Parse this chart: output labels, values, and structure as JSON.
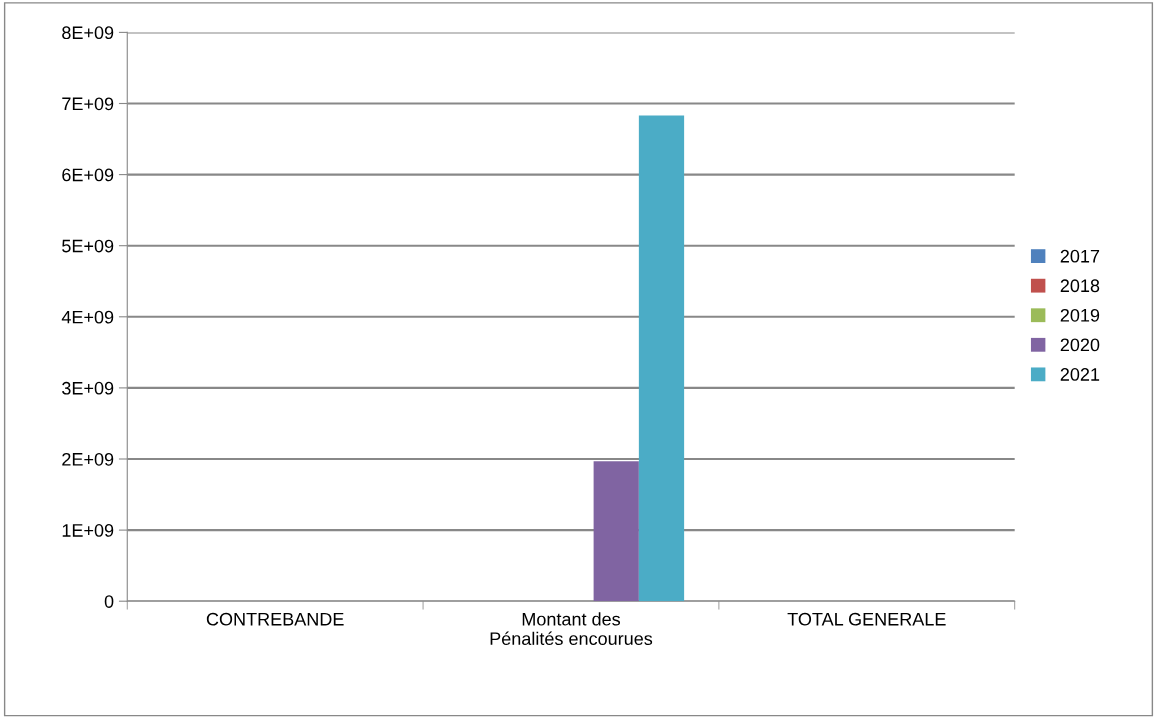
{
  "chart_data": {
    "type": "bar",
    "categories": [
      "CONTREBANDE",
      "Montant des\nPénalités encourues",
      "TOTAL GENERALE"
    ],
    "series": [
      {
        "name": "2017",
        "color": "#4f81bd",
        "values": [
          0,
          0,
          0
        ]
      },
      {
        "name": "2018",
        "color": "#c0504d",
        "values": [
          0,
          0,
          0
        ]
      },
      {
        "name": "2019",
        "color": "#9bbb59",
        "values": [
          0,
          0,
          0
        ]
      },
      {
        "name": "2020",
        "color": "#8064a2",
        "values": [
          0,
          1970000000,
          0
        ]
      },
      {
        "name": "2021",
        "color": "#4bacc6",
        "values": [
          0,
          6830000000,
          0
        ]
      }
    ],
    "ylim": [
      0,
      8000000000
    ],
    "yticks": [
      0,
      {
        "value": 1000000000,
        "label": "1E+09"
      },
      {
        "value": 2000000000,
        "label": "2E+09"
      },
      {
        "value": 3000000000,
        "label": "3E+09"
      },
      {
        "value": 4000000000,
        "label": "4E+09"
      },
      {
        "value": 5000000000,
        "label": "5E+09"
      },
      {
        "value": 6000000000,
        "label": "6E+09"
      },
      {
        "value": 7000000000,
        "label": "7E+09"
      },
      {
        "value": 8000000000,
        "label": "8E+09"
      }
    ],
    "grid": "y",
    "legend": "right"
  }
}
